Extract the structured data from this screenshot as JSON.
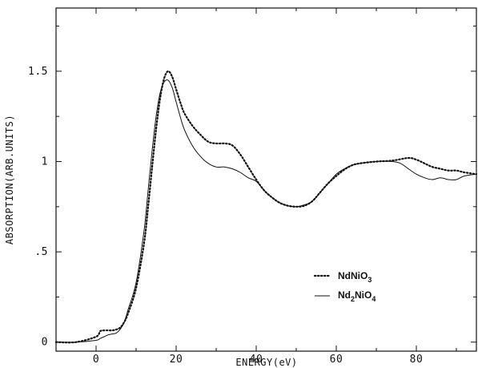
{
  "chart_data": {
    "type": "line",
    "xlabel": "ENERGY(eV)",
    "ylabel": "ABSORPTION(ARB.UNITS)",
    "xlim": [
      -10,
      95
    ],
    "ylim": [
      -0.05,
      1.85
    ],
    "x_ticks": [
      0,
      20,
      40,
      60,
      80
    ],
    "y_ticks": [
      0,
      0.5,
      1,
      1.5
    ],
    "x_tick_labels": [
      "0",
      "20",
      "40",
      "60",
      "80"
    ],
    "y_tick_labels": [
      "0",
      ".5",
      "1",
      "1.5"
    ],
    "grid": false,
    "legend_position": "lower-right",
    "legend": {
      "ndnio3": {
        "base": "NdNiO",
        "sub": "3"
      },
      "nd2nio4": {
        "base1": "Nd",
        "sub1": "2",
        "base2": "NiO",
        "sub2": "4"
      }
    },
    "series": [
      {
        "name": "NdNiO3",
        "style": "dotted",
        "x": [
          -10,
          -5,
          0,
          1,
          2,
          4,
          5,
          6,
          7,
          8,
          10,
          12,
          13,
          14,
          15,
          16,
          17,
          18,
          19,
          20,
          21,
          22,
          24,
          26,
          28,
          30,
          32,
          34,
          36,
          38,
          40,
          42,
          44,
          46,
          48,
          50,
          52,
          54,
          56,
          58,
          60,
          62,
          64,
          66,
          70,
          74,
          78,
          80,
          82,
          84,
          86,
          88,
          90,
          92,
          95
        ],
        "y": [
          0,
          0,
          0.03,
          0.06,
          0.065,
          0.065,
          0.07,
          0.08,
          0.11,
          0.16,
          0.3,
          0.55,
          0.75,
          0.97,
          1.18,
          1.35,
          1.46,
          1.5,
          1.47,
          1.4,
          1.33,
          1.27,
          1.2,
          1.15,
          1.11,
          1.1,
          1.1,
          1.09,
          1.04,
          0.97,
          0.9,
          0.84,
          0.8,
          0.77,
          0.755,
          0.75,
          0.755,
          0.78,
          0.83,
          0.88,
          0.92,
          0.955,
          0.98,
          0.99,
          1.0,
          1.005,
          1.02,
          1.01,
          0.99,
          0.97,
          0.96,
          0.95,
          0.95,
          0.94,
          0.93
        ]
      },
      {
        "name": "Nd2NiO4",
        "style": "solid",
        "x": [
          -10,
          -5,
          0,
          1,
          2,
          3,
          4,
          5,
          6,
          7,
          8,
          10,
          12,
          13,
          14,
          15,
          16,
          17,
          18,
          19,
          20,
          21,
          22,
          24,
          26,
          28,
          30,
          32,
          34,
          36,
          38,
          40,
          42,
          44,
          46,
          48,
          50,
          52,
          54,
          56,
          58,
          60,
          62,
          64,
          66,
          70,
          74,
          76,
          78,
          80,
          82,
          84,
          86,
          88,
          90,
          92,
          95
        ],
        "y": [
          0,
          0,
          0.01,
          0.02,
          0.03,
          0.04,
          0.045,
          0.05,
          0.07,
          0.11,
          0.18,
          0.33,
          0.62,
          0.84,
          1.06,
          1.25,
          1.38,
          1.44,
          1.45,
          1.41,
          1.33,
          1.25,
          1.18,
          1.09,
          1.03,
          0.99,
          0.97,
          0.97,
          0.96,
          0.94,
          0.91,
          0.89,
          0.84,
          0.8,
          0.77,
          0.755,
          0.75,
          0.76,
          0.78,
          0.83,
          0.88,
          0.93,
          0.96,
          0.98,
          0.99,
          1.0,
          1.0,
          0.99,
          0.96,
          0.93,
          0.91,
          0.9,
          0.91,
          0.9,
          0.9,
          0.92,
          0.93
        ]
      }
    ]
  }
}
